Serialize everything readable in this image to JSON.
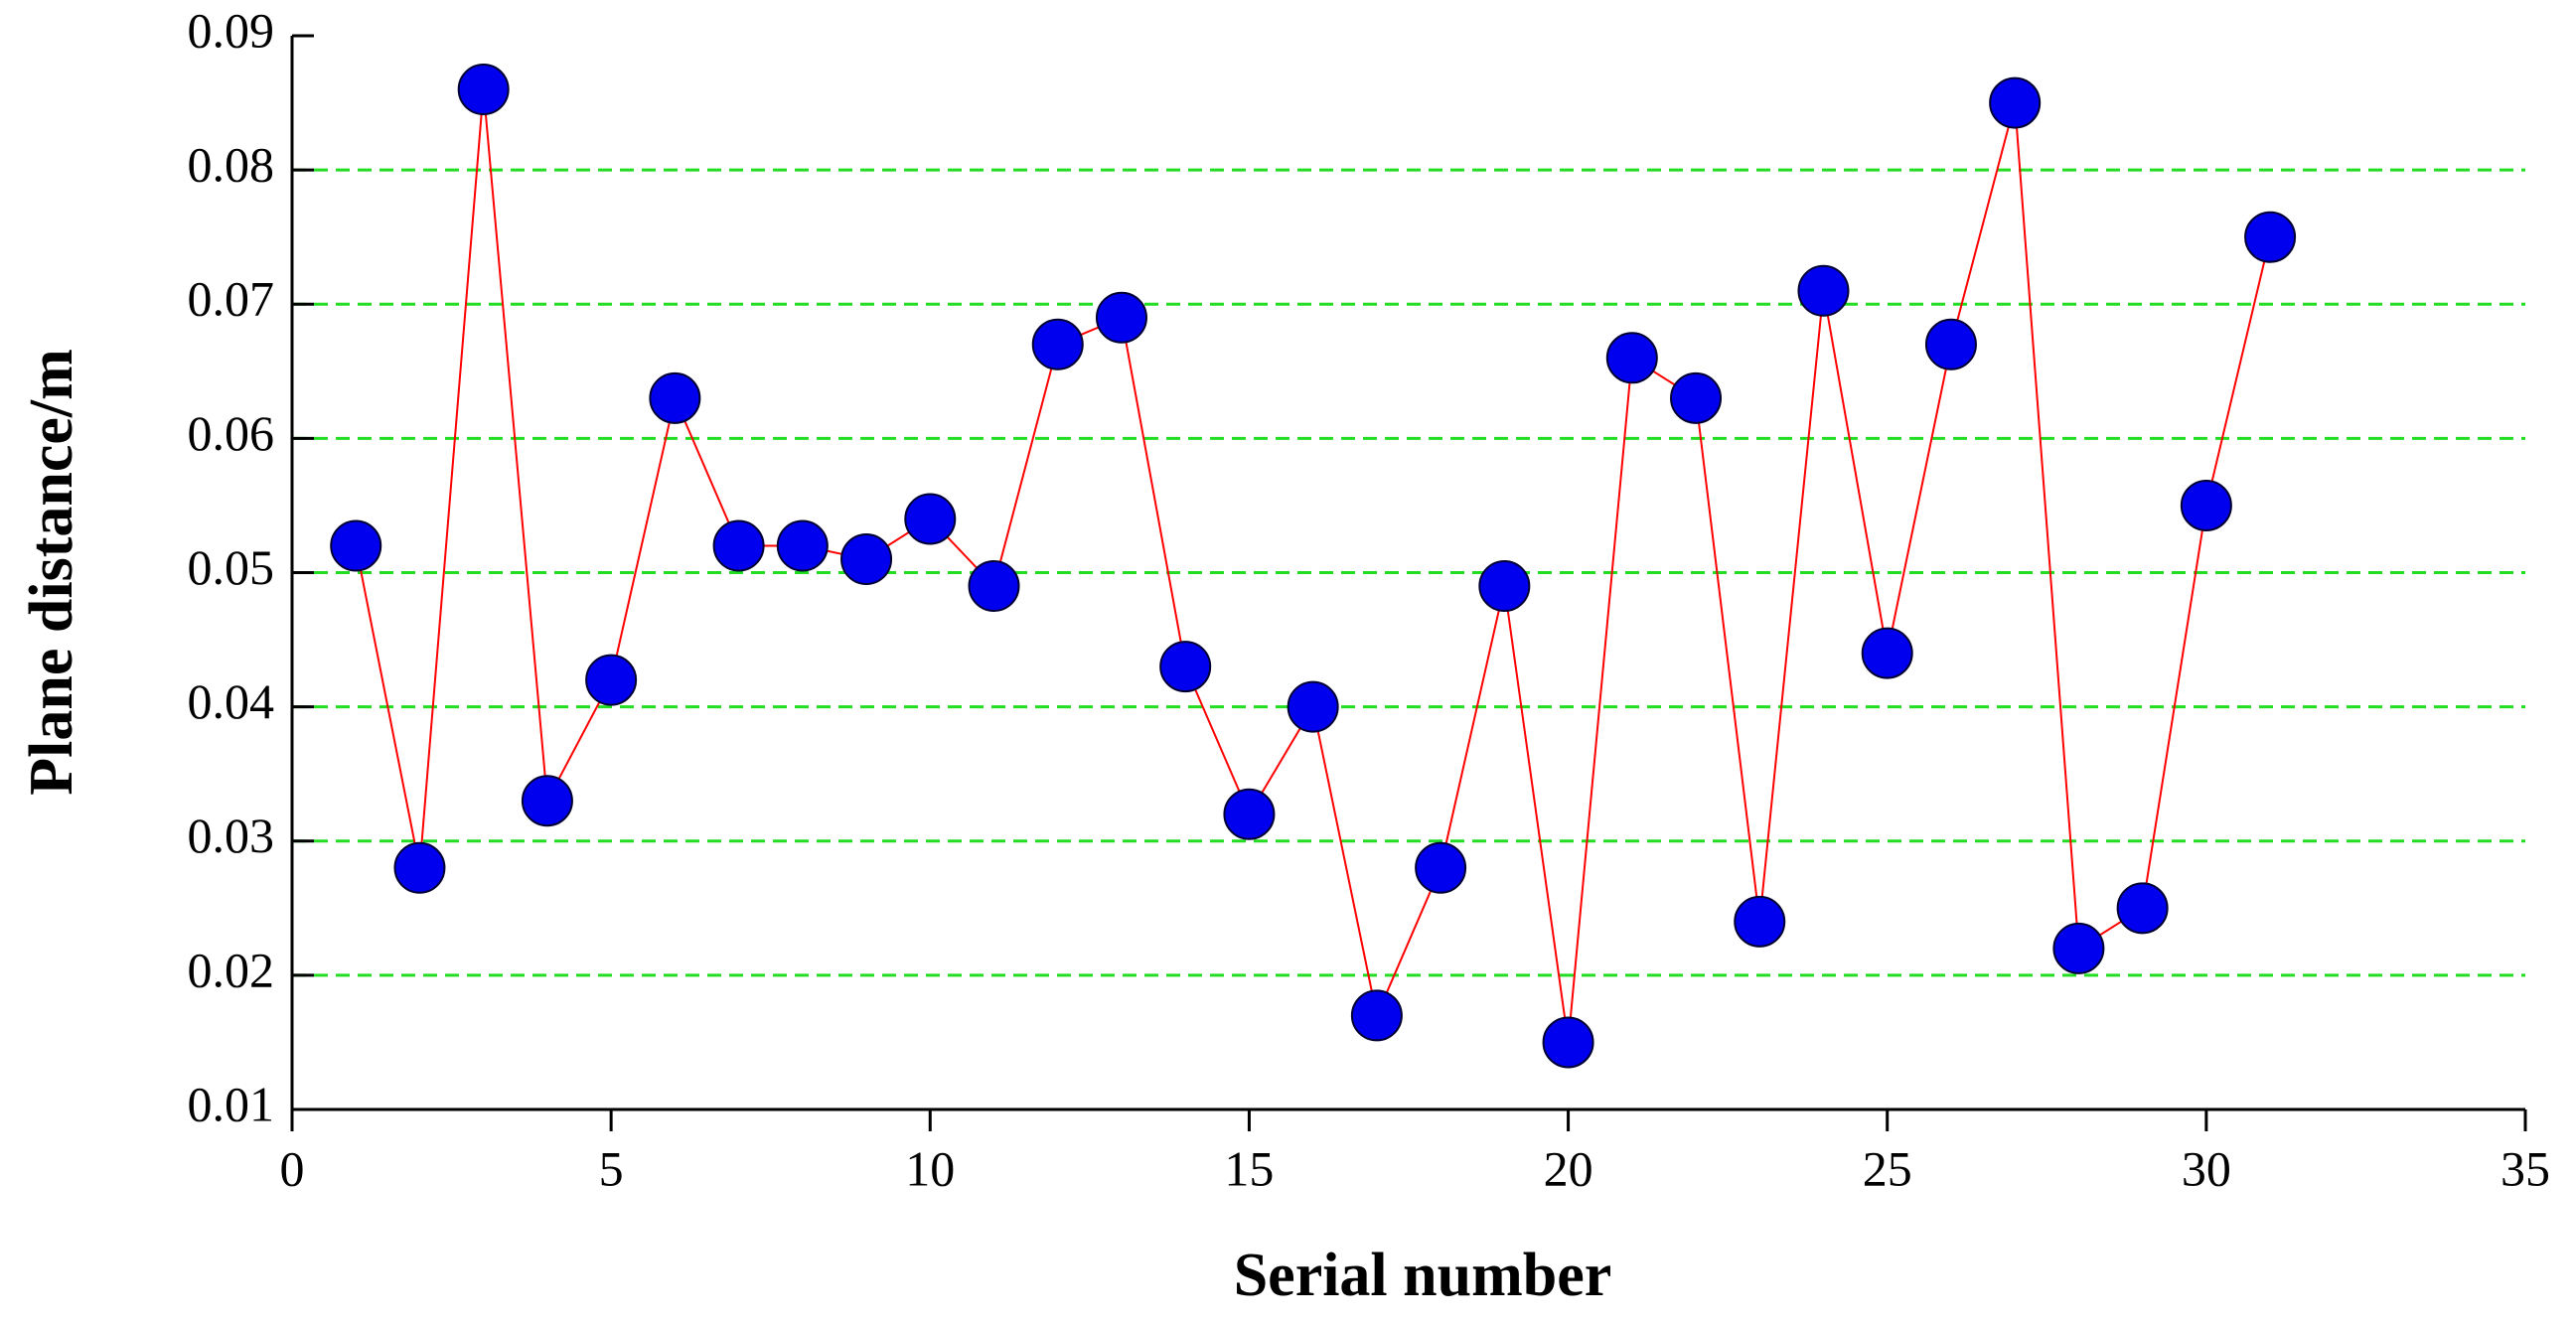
{
  "chart_data": {
    "type": "line",
    "xlabel": "Serial number",
    "ylabel": "Plane distance/m",
    "x": [
      1,
      2,
      3,
      4,
      5,
      6,
      7,
      8,
      9,
      10,
      11,
      12,
      13,
      14,
      15,
      16,
      17,
      18,
      19,
      20,
      21,
      22,
      23,
      24,
      25,
      26,
      27,
      28,
      29,
      30,
      31
    ],
    "series": [
      {
        "color": "#ff0000",
        "marker_color": "#0000ee",
        "values": [
          0.052,
          0.028,
          0.086,
          0.033,
          0.042,
          0.063,
          0.052,
          0.052,
          0.051,
          0.054,
          0.049,
          0.067,
          0.069,
          0.043,
          0.032,
          0.04,
          0.017,
          0.028,
          0.049,
          0.015,
          0.066,
          0.063,
          0.024,
          0.071,
          0.044,
          0.067,
          0.085,
          0.022,
          0.025,
          0.055,
          0.075
        ]
      }
    ],
    "xlim": [
      0,
      35
    ],
    "xticks": [
      0,
      5,
      10,
      15,
      20,
      25,
      30,
      35
    ],
    "ylim": [
      0.01,
      0.09
    ],
    "yticks": [
      0.01,
      0.02,
      0.03,
      0.04,
      0.05,
      0.06,
      0.07,
      0.08,
      0.09
    ],
    "grid": true,
    "grid_color": "#22dd22"
  }
}
